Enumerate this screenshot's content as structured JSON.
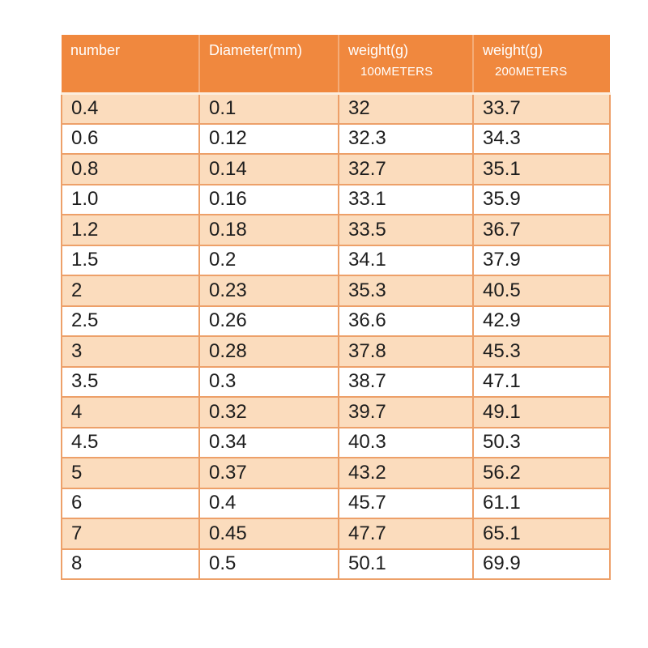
{
  "chart_data": {
    "type": "table",
    "title": "",
    "header": [
      {
        "label": "number",
        "sublabel": ""
      },
      {
        "label": "Diameter(mm)",
        "sublabel": ""
      },
      {
        "label": "weight(g)",
        "sublabel": "100METERS"
      },
      {
        "label": "weight(g)",
        "sublabel": "200METERS"
      }
    ],
    "columns": [
      "number",
      "Diameter(mm)",
      "weight(g) 100METERS",
      "weight(g) 200METERS"
    ],
    "rows": [
      [
        "0.4",
        "0.1",
        "32",
        "33.7"
      ],
      [
        "0.6",
        "0.12",
        "32.3",
        "34.3"
      ],
      [
        "0.8",
        "0.14",
        "32.7",
        "35.1"
      ],
      [
        "1.0",
        "0.16",
        "33.1",
        "35.9"
      ],
      [
        "1.2",
        "0.18",
        "33.5",
        "36.7"
      ],
      [
        "1.5",
        "0.2",
        "34.1",
        "37.9"
      ],
      [
        "2",
        "0.23",
        "35.3",
        "40.5"
      ],
      [
        "2.5",
        "0.26",
        "36.6",
        "42.9"
      ],
      [
        "3",
        "0.28",
        "37.8",
        "45.3"
      ],
      [
        "3.5",
        "0.3",
        "38.7",
        "47.1"
      ],
      [
        "4",
        "0.32",
        "39.7",
        "49.1"
      ],
      [
        "4.5",
        "0.34",
        "40.3",
        "50.3"
      ],
      [
        "5",
        "0.37",
        "43.2",
        "56.2"
      ],
      [
        "6",
        "0.4",
        "45.7",
        "61.1"
      ],
      [
        "7",
        "0.45",
        "47.7",
        "65.1"
      ],
      [
        "8",
        "0.5",
        "50.1",
        "69.9"
      ]
    ],
    "layout_hints": {
      "banding": "first body row shaded, alternating",
      "grid": "on"
    }
  },
  "colors": {
    "header_bg": "#F0883E",
    "header_text": "#FFFFFF",
    "header_divider": "#FCEEDF",
    "band_bg": "#FBDCBD",
    "row_bg": "#FFFFFF",
    "border": "#EDA069",
    "body_text": "#1D1D1D"
  }
}
